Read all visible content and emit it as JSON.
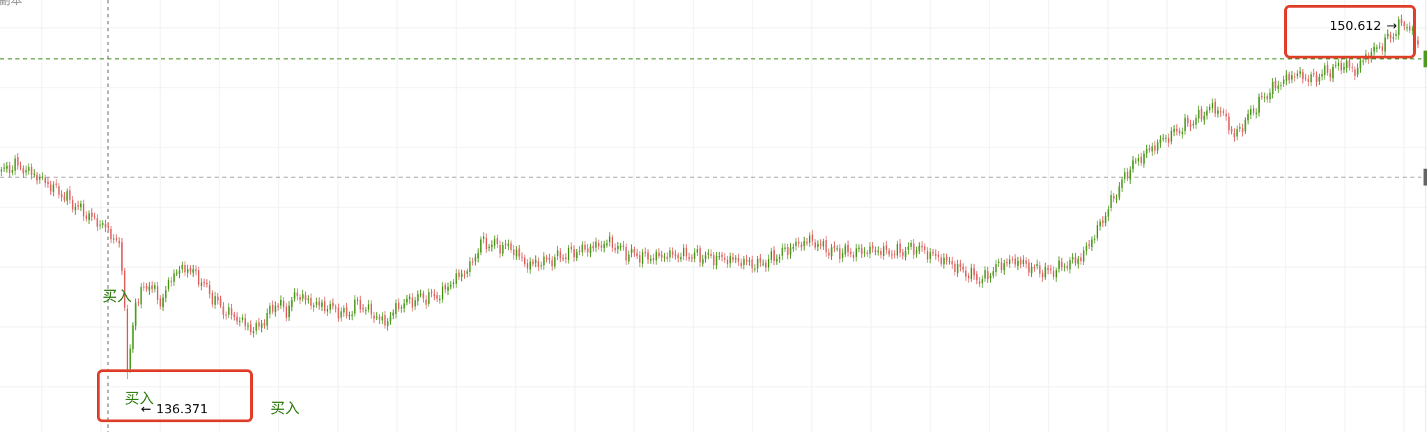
{
  "header": {
    "corner_label": "副本"
  },
  "colors": {
    "up": "#4e9a1e",
    "down": "#e06666",
    "grid": "#eeeeee",
    "crosshair": "#777777",
    "level_line": "#3f8f1a",
    "highlight_box": "#e0412c",
    "buy_text": "#2f7d12",
    "price_text": "#111111"
  },
  "annotations": {
    "high_label": "150.612",
    "high_arrow": "→",
    "low_label": "136.371",
    "low_arrow": "←",
    "buy_labels": [
      "买入",
      "买入",
      "买入"
    ]
  },
  "chart_data": {
    "type": "candlestick",
    "title": "",
    "xlabel": "",
    "ylabel": "",
    "ylim": [
      135.5,
      151.0
    ],
    "grid": true,
    "high": 150.612,
    "low": 136.371,
    "horizontal_levels": [
      149.1,
      144.4
    ],
    "anchors": [
      [
        0,
        144.6
      ],
      [
        5,
        144.9
      ],
      [
        12,
        144.5
      ],
      [
        20,
        143.9
      ],
      [
        30,
        143.0
      ],
      [
        38,
        142.4
      ],
      [
        43,
        141.7
      ],
      [
        45,
        139.5
      ],
      [
        46,
        136.371
      ],
      [
        49,
        139.5
      ],
      [
        54,
        140.2
      ],
      [
        58,
        139.4
      ],
      [
        63,
        140.6
      ],
      [
        68,
        140.8
      ],
      [
        72,
        140.4
      ],
      [
        76,
        139.8
      ],
      [
        81,
        139.1
      ],
      [
        86,
        138.8
      ],
      [
        92,
        138.3
      ],
      [
        96,
        138.7
      ],
      [
        100,
        139.4
      ],
      [
        104,
        139.1
      ],
      [
        108,
        139.8
      ],
      [
        111,
        139.5
      ],
      [
        116,
        139.3
      ],
      [
        121,
        139.2
      ],
      [
        126,
        138.9
      ],
      [
        130,
        139.4
      ],
      [
        135,
        139.0
      ],
      [
        140,
        138.6
      ],
      [
        145,
        139.3
      ],
      [
        152,
        139.6
      ],
      [
        160,
        139.7
      ],
      [
        165,
        140.3
      ],
      [
        171,
        140.8
      ],
      [
        175,
        141.8
      ],
      [
        180,
        141.7
      ],
      [
        186,
        141.6
      ],
      [
        192,
        140.9
      ],
      [
        200,
        141.1
      ],
      [
        208,
        141.4
      ],
      [
        215,
        141.6
      ],
      [
        222,
        141.8
      ],
      [
        228,
        141.4
      ],
      [
        236,
        141.2
      ],
      [
        244,
        141.3
      ],
      [
        252,
        141.3
      ],
      [
        260,
        141.2
      ],
      [
        268,
        141.1
      ],
      [
        276,
        140.9
      ],
      [
        282,
        141.2
      ],
      [
        288,
        141.6
      ],
      [
        295,
        141.9
      ],
      [
        302,
        141.5
      ],
      [
        310,
        141.4
      ],
      [
        318,
        141.5
      ],
      [
        326,
        141.4
      ],
      [
        334,
        141.6
      ],
      [
        340,
        141.3
      ],
      [
        346,
        141.0
      ],
      [
        352,
        140.6
      ],
      [
        358,
        140.3
      ],
      [
        364,
        140.9
      ],
      [
        370,
        141.1
      ],
      [
        376,
        140.8
      ],
      [
        382,
        140.6
      ],
      [
        388,
        140.9
      ],
      [
        394,
        141.2
      ],
      [
        400,
        142.3
      ],
      [
        406,
        143.6
      ],
      [
        412,
        144.8
      ],
      [
        418,
        145.4
      ],
      [
        424,
        145.9
      ],
      [
        430,
        146.3
      ],
      [
        436,
        146.7
      ],
      [
        442,
        147.2
      ],
      [
        446,
        146.9
      ],
      [
        450,
        146.0
      ],
      [
        455,
        146.8
      ],
      [
        460,
        147.5
      ],
      [
        466,
        148.1
      ],
      [
        472,
        148.5
      ],
      [
        478,
        148.3
      ],
      [
        484,
        148.6
      ],
      [
        490,
        148.9
      ],
      [
        494,
        148.6
      ],
      [
        498,
        149.2
      ],
      [
        503,
        149.6
      ],
      [
        508,
        150.1
      ],
      [
        512,
        150.612
      ],
      [
        514,
        150.2
      ],
      [
        517,
        149.8
      ]
    ]
  }
}
